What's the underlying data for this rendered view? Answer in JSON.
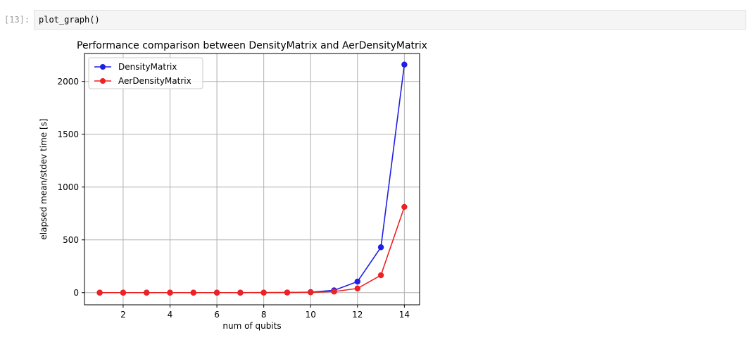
{
  "cell": {
    "prompt": "[13]:",
    "code": "plot_graph()"
  },
  "chart_data": {
    "type": "line",
    "title": "Performance comparison between DensityMatrix and AerDensityMatrix",
    "xlabel": "num of qubits",
    "ylabel": "elapsed mean/stdev time [s]",
    "xlim": [
      0.35,
      14.65
    ],
    "ylim": [
      -115,
      2265
    ],
    "xticks": [
      2,
      4,
      6,
      8,
      10,
      12,
      14
    ],
    "yticks": [
      0,
      500,
      1000,
      1500,
      2000
    ],
    "grid": true,
    "legend_position": "upper-left",
    "x": [
      1,
      2,
      3,
      4,
      5,
      6,
      7,
      8,
      9,
      10,
      11,
      12,
      13,
      14
    ],
    "series": [
      {
        "name": "DensityMatrix",
        "color": "#1f1fe6",
        "marker": "circle",
        "values": [
          0,
          0,
          0,
          0,
          0,
          0,
          0,
          0.5,
          1.5,
          5,
          22,
          105,
          430,
          2160
        ]
      },
      {
        "name": "AerDensityMatrix",
        "color": "#ee2222",
        "marker": "circle",
        "values": [
          0,
          0,
          0,
          0,
          0,
          0,
          0,
          0.3,
          1,
          3,
          10,
          40,
          165,
          812
        ]
      }
    ]
  }
}
